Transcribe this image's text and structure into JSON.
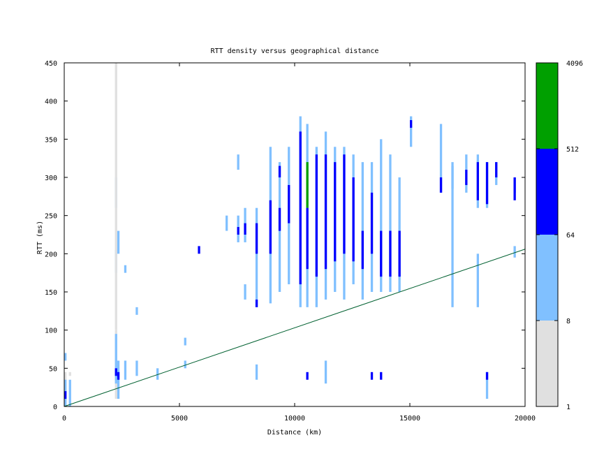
{
  "chart_data": {
    "type": "heatmap",
    "title": "RTT density versus geographical distance",
    "xlabel": "Distance (km)",
    "ylabel": "RTT (ms)",
    "xlim": [
      0,
      20000
    ],
    "ylim": [
      0,
      450
    ],
    "xticks": [
      "0",
      "5000",
      "10000",
      "15000",
      "20000"
    ],
    "yticks": [
      "0",
      "50",
      "100",
      "150",
      "200",
      "250",
      "300",
      "350",
      "400",
      "450"
    ],
    "colorbar": {
      "scale": "log",
      "ticks": [
        "1",
        "8",
        "64",
        "512",
        "4096"
      ],
      "bands": [
        {
          "from": 1,
          "to": 8,
          "color": "#e0e0e0"
        },
        {
          "from": 8,
          "to": 64,
          "color": "#80c0ff"
        },
        {
          "from": 64,
          "to": 512,
          "color": "#0000ff"
        },
        {
          "from": 512,
          "to": 4096,
          "color": "#00a000"
        }
      ]
    },
    "reference_line": {
      "x": [
        0,
        20000
      ],
      "y": [
        0,
        206
      ],
      "color": "#006030"
    },
    "cells": {
      "bin_width_km": 100,
      "bin_height_ms": 5,
      "columns": [
        {
          "x": 0,
          "y_ranges": [
            [
              0,
              45,
              "#e0e0e0"
            ],
            [
              0,
              35,
              "#80c0ff"
            ],
            [
              10,
              20,
              "#0000ff"
            ],
            [
              60,
              70,
              "#80c0ff"
            ]
          ]
        },
        {
          "x": 200,
          "y_ranges": [
            [
              0,
              35,
              "#80c0ff"
            ],
            [
              40,
              45,
              "#e0e0e0"
            ]
          ]
        },
        {
          "x": 2200,
          "y_ranges": [
            [
              10,
              100,
              "#e0e0e0"
            ],
            [
              30,
              95,
              "#80c0ff"
            ],
            [
              40,
              50,
              "#0000ff"
            ],
            [
              175,
              205,
              "#80c0ff"
            ],
            [
              260,
              300,
              "#80c0ff"
            ],
            [
              100,
              450,
              "#e0e0e0"
            ]
          ]
        },
        {
          "x": 2300,
          "y_ranges": [
            [
              10,
              60,
              "#80c0ff"
            ],
            [
              35,
              45,
              "#0000ff"
            ],
            [
              200,
              230,
              "#80c0ff"
            ]
          ]
        },
        {
          "x": 2600,
          "y_ranges": [
            [
              35,
              60,
              "#80c0ff"
            ],
            [
              175,
              185,
              "#80c0ff"
            ]
          ]
        },
        {
          "x": 3100,
          "y_ranges": [
            [
              40,
              60,
              "#80c0ff"
            ],
            [
              120,
              130,
              "#80c0ff"
            ]
          ]
        },
        {
          "x": 4000,
          "y_ranges": [
            [
              35,
              50,
              "#80c0ff"
            ]
          ]
        },
        {
          "x": 5200,
          "y_ranges": [
            [
              80,
              90,
              "#80c0ff"
            ],
            [
              50,
              60,
              "#80c0ff"
            ]
          ]
        },
        {
          "x": 5800,
          "y_ranges": [
            [
              200,
              210,
              "#0000ff"
            ]
          ]
        },
        {
          "x": 7000,
          "y_ranges": [
            [
              230,
              250,
              "#80c0ff"
            ]
          ]
        },
        {
          "x": 7500,
          "y_ranges": [
            [
              215,
              250,
              "#80c0ff"
            ],
            [
              225,
              235,
              "#0000ff"
            ],
            [
              310,
              330,
              "#80c0ff"
            ]
          ]
        },
        {
          "x": 7800,
          "y_ranges": [
            [
              215,
              260,
              "#80c0ff"
            ],
            [
              225,
              240,
              "#0000ff"
            ],
            [
              140,
              160,
              "#80c0ff"
            ]
          ]
        },
        {
          "x": 8300,
          "y_ranges": [
            [
              130,
              260,
              "#80c0ff"
            ],
            [
              200,
              240,
              "#0000ff"
            ],
            [
              130,
              140,
              "#0000ff"
            ],
            [
              35,
              55,
              "#80c0ff"
            ]
          ]
        },
        {
          "x": 8900,
          "y_ranges": [
            [
              135,
              340,
              "#80c0ff"
            ],
            [
              200,
              270,
              "#0000ff"
            ]
          ]
        },
        {
          "x": 9300,
          "y_ranges": [
            [
              150,
              320,
              "#80c0ff"
            ],
            [
              230,
              260,
              "#0000ff"
            ],
            [
              300,
              315,
              "#0000ff"
            ]
          ]
        },
        {
          "x": 9700,
          "y_ranges": [
            [
              160,
              340,
              "#80c0ff"
            ],
            [
              240,
              290,
              "#0000ff"
            ]
          ]
        },
        {
          "x": 10200,
          "y_ranges": [
            [
              130,
              380,
              "#80c0ff"
            ],
            [
              160,
              360,
              "#0000ff"
            ]
          ]
        },
        {
          "x": 10500,
          "y_ranges": [
            [
              130,
              370,
              "#80c0ff"
            ],
            [
              260,
              320,
              "#00a000"
            ],
            [
              180,
              260,
              "#0000ff"
            ],
            [
              35,
              45,
              "#0000ff"
            ]
          ]
        },
        {
          "x": 10900,
          "y_ranges": [
            [
              130,
              340,
              "#80c0ff"
            ],
            [
              170,
              330,
              "#0000ff"
            ]
          ]
        },
        {
          "x": 11300,
          "y_ranges": [
            [
              140,
              360,
              "#80c0ff"
            ],
            [
              180,
              330,
              "#0000ff"
            ],
            [
              30,
              60,
              "#80c0ff"
            ]
          ]
        },
        {
          "x": 11700,
          "y_ranges": [
            [
              150,
              340,
              "#80c0ff"
            ],
            [
              190,
              320,
              "#0000ff"
            ]
          ]
        },
        {
          "x": 12100,
          "y_ranges": [
            [
              140,
              340,
              "#80c0ff"
            ],
            [
              200,
              330,
              "#0000ff"
            ]
          ]
        },
        {
          "x": 12500,
          "y_ranges": [
            [
              160,
              330,
              "#80c0ff"
            ],
            [
              190,
              300,
              "#0000ff"
            ]
          ]
        },
        {
          "x": 12900,
          "y_ranges": [
            [
              140,
              320,
              "#80c0ff"
            ],
            [
              180,
              230,
              "#0000ff"
            ]
          ]
        },
        {
          "x": 13300,
          "y_ranges": [
            [
              150,
              320,
              "#80c0ff"
            ],
            [
              200,
              280,
              "#0000ff"
            ],
            [
              35,
              45,
              "#0000ff"
            ]
          ]
        },
        {
          "x": 13700,
          "y_ranges": [
            [
              150,
              350,
              "#80c0ff"
            ],
            [
              170,
              230,
              "#0000ff"
            ],
            [
              35,
              45,
              "#0000ff"
            ]
          ]
        },
        {
          "x": 14100,
          "y_ranges": [
            [
              150,
              330,
              "#80c0ff"
            ],
            [
              170,
              230,
              "#0000ff"
            ]
          ]
        },
        {
          "x": 14500,
          "y_ranges": [
            [
              150,
              300,
              "#80c0ff"
            ],
            [
              170,
              230,
              "#0000ff"
            ]
          ]
        },
        {
          "x": 15000,
          "y_ranges": [
            [
              340,
              380,
              "#80c0ff"
            ],
            [
              365,
              375,
              "#0000ff"
            ]
          ]
        },
        {
          "x": 16300,
          "y_ranges": [
            [
              280,
              370,
              "#80c0ff"
            ],
            [
              280,
              300,
              "#0000ff"
            ]
          ]
        },
        {
          "x": 16800,
          "y_ranges": [
            [
              130,
              320,
              "#80c0ff"
            ],
            [
              285,
              315,
              "#80c0ff"
            ]
          ]
        },
        {
          "x": 17400,
          "y_ranges": [
            [
              280,
              330,
              "#80c0ff"
            ],
            [
              290,
              310,
              "#0000ff"
            ]
          ]
        },
        {
          "x": 17900,
          "y_ranges": [
            [
              260,
              330,
              "#80c0ff"
            ],
            [
              270,
              320,
              "#0000ff"
            ],
            [
              130,
              200,
              "#80c0ff"
            ]
          ]
        },
        {
          "x": 18300,
          "y_ranges": [
            [
              260,
              320,
              "#80c0ff"
            ],
            [
              265,
              320,
              "#0000ff"
            ],
            [
              10,
              45,
              "#80c0ff"
            ],
            [
              35,
              45,
              "#0000ff"
            ]
          ]
        },
        {
          "x": 18700,
          "y_ranges": [
            [
              290,
              320,
              "#80c0ff"
            ],
            [
              300,
              320,
              "#0000ff"
            ]
          ]
        },
        {
          "x": 19500,
          "y_ranges": [
            [
              280,
              300,
              "#80c0ff"
            ],
            [
              270,
              300,
              "#0000ff"
            ],
            [
              195,
              210,
              "#80c0ff"
            ]
          ]
        }
      ]
    }
  }
}
